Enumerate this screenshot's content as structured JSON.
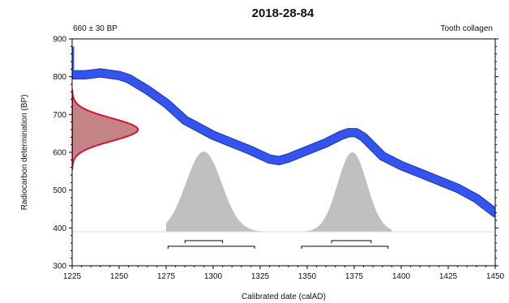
{
  "chart_data": {
    "type": "area",
    "title": "2018-28-84",
    "sample_label": "660 ± 30 BP",
    "material_label": "Tooth collagen",
    "xlabel": "Calibrated date (calAD)",
    "ylabel": "Radiocarbon determination (BP)",
    "xlim": [
      1225,
      1450
    ],
    "ylim": [
      300,
      900
    ],
    "x_ticks": [
      "1225",
      "1250",
      "1275",
      "1300",
      "1325",
      "1350",
      "1375",
      "1400",
      "1425",
      "1450"
    ],
    "y_ticks": [
      "300",
      "400",
      "500",
      "600",
      "700",
      "800",
      "900"
    ],
    "colors": {
      "calibration_curve": "#3355ee",
      "calibration_curve_edge": "#2233aa",
      "radiocarbon_fill": "#bb7777",
      "radiocarbon_edge": "#dd1133",
      "posterior_fill": "#c0c0c0"
    },
    "calibration_curve": {
      "x": [
        1225,
        1232,
        1240,
        1250,
        1255,
        1265,
        1275,
        1285,
        1300,
        1310,
        1320,
        1330,
        1335,
        1340,
        1350,
        1360,
        1368,
        1372,
        1376,
        1380,
        1390,
        1400,
        1410,
        1420,
        1430,
        1440,
        1450
      ],
      "y": [
        805,
        805,
        810,
        803,
        795,
        765,
        730,
        685,
        645,
        625,
        605,
        582,
        578,
        585,
        605,
        625,
        645,
        652,
        652,
        640,
        590,
        565,
        545,
        525,
        505,
        478,
        440
      ],
      "band_halfwidth": 10
    },
    "radiocarbon_density": {
      "center_bp": 660,
      "sigma_bp": 30,
      "y_range": [
        555,
        765
      ]
    },
    "calibrated_density": {
      "baseline_bp": 390,
      "peaks": [
        {
          "center": 1295,
          "sigma": 9.5,
          "height_bp": 212
        },
        {
          "center": 1374,
          "sigma": 7.8,
          "height_bp": 210
        }
      ],
      "x_range": [
        1275,
        1395
      ]
    },
    "ranges_68": [
      [
        1285,
        1305
      ],
      [
        1363,
        1384
      ]
    ],
    "ranges_95": [
      [
        1276,
        1322
      ],
      [
        1347,
        1393
      ]
    ]
  }
}
